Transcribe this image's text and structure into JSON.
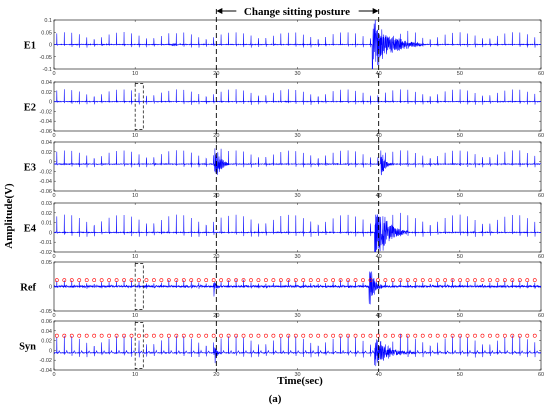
{
  "chart_data": {
    "type": "line",
    "annotation": "Change sitting posture",
    "annotation_times": [
      20,
      40
    ],
    "xlabel": "Time(sec)",
    "ylabel": "Amplitude(V)",
    "caption": "(a)",
    "xlim": [
      0,
      60
    ],
    "x_ticks": [
      "0",
      "10",
      "20",
      "30",
      "40",
      "50",
      "60"
    ],
    "line_color": "#0000ff",
    "marker_color": "#ff0000",
    "panels": [
      {
        "name": "E1",
        "ylim": [
          -0.1,
          0.1
        ],
        "y_ticks": [
          "0.1",
          "0.05",
          "0",
          "-0.05",
          "-0.1"
        ],
        "baseline": 0,
        "peak_amplitude": 0.05,
        "noise": 0.002,
        "markers": false,
        "disturbances": [
          {
            "start": 14.5,
            "end": 16.5,
            "amplitude": 0.008
          },
          {
            "start": 39.2,
            "end": 45.5,
            "amplitude": 0.11
          }
        ]
      },
      {
        "name": "E2",
        "ylim": [
          -0.06,
          0.04
        ],
        "y_ticks": [
          "0.04",
          "0.02",
          "0",
          "-0.02",
          "-0.04",
          "-0.06"
        ],
        "baseline": 0,
        "peak_amplitude": 0.025,
        "noise": 0.001,
        "markers": false,
        "dashed_box": [
          10,
          11
        ],
        "disturbances": []
      },
      {
        "name": "E3",
        "ylim": [
          -0.06,
          0.04
        ],
        "y_ticks": [
          "0.04",
          "0.02",
          "0",
          "-0.02",
          "-0.04",
          "-0.06"
        ],
        "baseline": -0.005,
        "peak_amplitude": 0.028,
        "noise": 0.0012,
        "markers": false,
        "disturbances": [
          {
            "start": 19.8,
            "end": 21.5,
            "amplitude": 0.045
          },
          {
            "start": 40.2,
            "end": 41.8,
            "amplitude": 0.03
          }
        ]
      },
      {
        "name": "E4",
        "ylim": [
          -0.02,
          0.03
        ],
        "y_ticks": [
          "0.03",
          "0.02",
          "0.01",
          "0",
          "-0.01",
          "-0.02"
        ],
        "baseline": 0.0,
        "peak_amplitude": 0.018,
        "noise": 0.0006,
        "markers": false,
        "disturbances": [
          {
            "start": 39.5,
            "end": 43.5,
            "amplitude": 0.035
          }
        ]
      },
      {
        "name": "Ref",
        "ylim": [
          -0.05,
          0.05
        ],
        "y_ticks": [
          "0.05",
          "0",
          "-0.05"
        ],
        "baseline": 0.0,
        "peak_amplitude": 0.013,
        "noise": 0.003,
        "markers": true,
        "dashed_box": [
          10,
          11
        ],
        "disturbances": [
          {
            "start": 19.7,
            "end": 20.6,
            "amplitude": 0.02
          },
          {
            "start": 38.8,
            "end": 40.6,
            "amplitude": 0.05
          }
        ]
      },
      {
        "name": "Syn",
        "ylim": [
          -0.04,
          0.06
        ],
        "y_ticks": [
          "0.06",
          "0.04",
          "0.02",
          "0",
          "-0.02",
          "-0.04"
        ],
        "baseline": -0.005,
        "peak_amplitude": 0.035,
        "noise": 0.0012,
        "markers": true,
        "dashed_box": [
          10,
          11
        ],
        "disturbances": [
          {
            "start": 19.8,
            "end": 20.6,
            "amplitude": 0.025
          },
          {
            "start": 39.5,
            "end": 44.5,
            "amplitude": 0.03
          }
        ]
      }
    ],
    "beat_interval_sec": 0.92,
    "first_beat_sec": 0.35
  }
}
